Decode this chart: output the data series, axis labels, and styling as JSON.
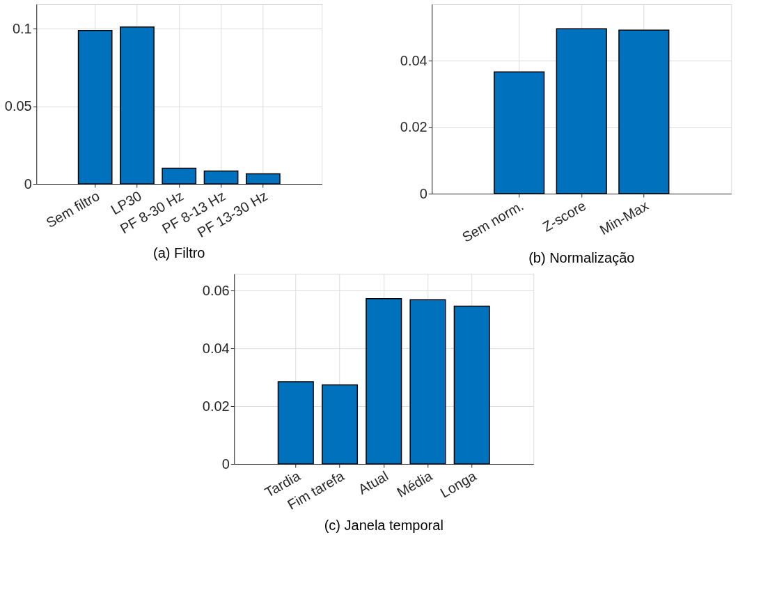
{
  "chart_data": [
    {
      "type": "bar",
      "title": "(a) Filtro",
      "categories": [
        "Sem filtro",
        "LP30",
        "PF 8-30 Hz",
        "PF 8-13 Hz",
        "PF 13-30 Hz"
      ],
      "values": [
        0.0988,
        0.101,
        0.0101,
        0.0083,
        0.0065
      ],
      "color": "#0072bd",
      "ylim": [
        0,
        0.1157
      ],
      "yticks": [
        0,
        0.05,
        0.1
      ],
      "grid": true
    },
    {
      "type": "bar",
      "title": "(b) Normalização",
      "categories": [
        "Sem norm.",
        "Z-score",
        "Min-Max"
      ],
      "values": [
        0.0366,
        0.0496,
        0.0492
      ],
      "color": "#0072bd",
      "ylim": [
        0,
        0.057
      ],
      "yticks": [
        0,
        0.02,
        0.04
      ],
      "grid": true
    },
    {
      "type": "bar",
      "title": "(c) Janela temporal",
      "categories": [
        "Tardia",
        "Fim tarefa",
        "Atual",
        "Média",
        "Longa"
      ],
      "values": [
        0.0285,
        0.0274,
        0.0573,
        0.0569,
        0.0547
      ],
      "color": "#0072bd",
      "ylim": [
        0,
        0.0659
      ],
      "yticks": [
        0,
        0.02,
        0.04,
        0.06
      ],
      "grid": true
    }
  ]
}
